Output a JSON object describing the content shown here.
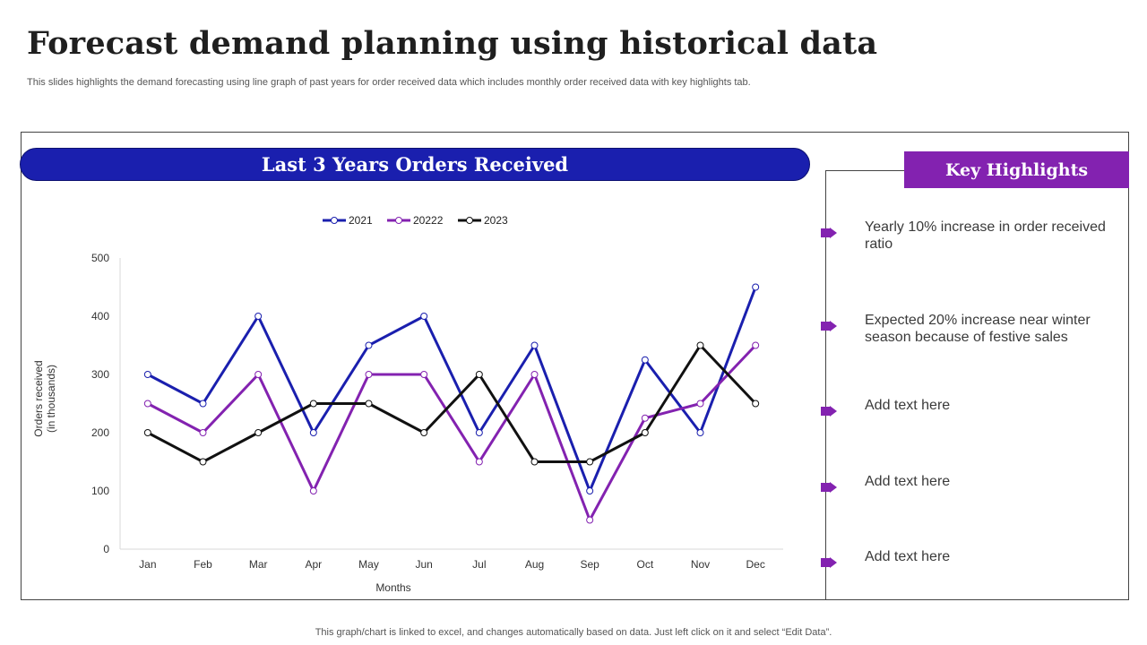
{
  "page": {
    "title": "Forecast demand planning using historical data",
    "subtitle": "This slides highlights the demand forecasting using line graph of past years for order received data which includes monthly order received data with key highlights tab.",
    "footer": "This graph/chart is linked to excel,  and changes automatically based on data. Just left click on it and select “Edit Data”."
  },
  "chart_header": "Last 3 Years Orders Received",
  "highlights": {
    "title": "Key Highlights",
    "items": [
      "Yearly  10% increase in order received ratio",
      "Expected 20% increase near winter season because of festive sales",
      "Add text here",
      "Add text here",
      "Add text here"
    ]
  },
  "chart_data": {
    "type": "line",
    "title": "Last 3 Years Orders Received",
    "xlabel": "Months",
    "ylabel": "Orders received (in thousands)",
    "ylim": [
      0,
      500
    ],
    "yticks": [
      0,
      100,
      200,
      300,
      400,
      500
    ],
    "legend_position": "top-center",
    "categories": [
      "Jan",
      "Feb",
      "Mar",
      "Apr",
      "May",
      "Jun",
      "Jul",
      "Aug",
      "Sep",
      "Oct",
      "Nov",
      "Dec"
    ],
    "series": [
      {
        "name": "2021",
        "color": "#1a1fae",
        "values": [
          300,
          250,
          400,
          200,
          350,
          400,
          200,
          350,
          100,
          325,
          200,
          450
        ]
      },
      {
        "name": "20222",
        "color": "#8322b0",
        "values": [
          250,
          200,
          300,
          100,
          300,
          300,
          150,
          300,
          50,
          225,
          250,
          350
        ]
      },
      {
        "name": "2023",
        "color": "#111111",
        "values": [
          200,
          150,
          200,
          250,
          250,
          200,
          300,
          150,
          150,
          200,
          350,
          250
        ]
      }
    ]
  }
}
